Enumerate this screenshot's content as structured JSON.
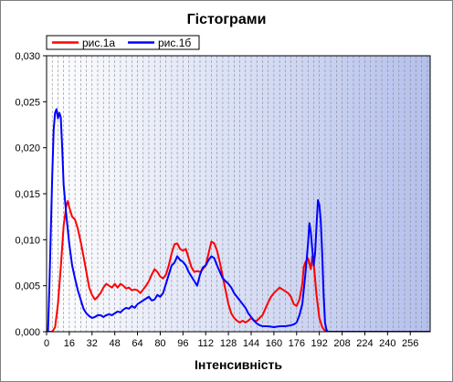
{
  "chart_data": {
    "type": "line",
    "title": "Гістограми",
    "xlabel": "Інтенсивність",
    "ylabel": "",
    "xlim": [
      0,
      270
    ],
    "ylim": [
      0,
      0.03
    ],
    "x_ticks": [
      "0",
      "16",
      "32",
      "48",
      "64",
      "80",
      "96",
      "112",
      "128",
      "144",
      "160",
      "176",
      "192",
      "208",
      "224",
      "240",
      "256"
    ],
    "y_ticks": [
      "0,000",
      "0,005",
      "0,010",
      "0,015",
      "0,020",
      "0,025",
      "0,030"
    ],
    "grid": "vertical dashed",
    "legend": "top-left",
    "colors": {
      "background_start": "#ffffff",
      "background_end": "#b4c0ec",
      "grid": "#8a8a8a"
    },
    "series": [
      {
        "name": "рис.1а",
        "color": "#ff0000",
        "points": [
          [
            0,
            0.0
          ],
          [
            4,
            0.0
          ],
          [
            6,
            0.0005
          ],
          [
            8,
            0.003
          ],
          [
            10,
            0.007
          ],
          [
            12,
            0.0115
          ],
          [
            14,
            0.0138
          ],
          [
            15,
            0.0142
          ],
          [
            16,
            0.0135
          ],
          [
            18,
            0.0125
          ],
          [
            20,
            0.0122
          ],
          [
            22,
            0.0112
          ],
          [
            24,
            0.0098
          ],
          [
            26,
            0.0082
          ],
          [
            28,
            0.0065
          ],
          [
            30,
            0.0048
          ],
          [
            32,
            0.004
          ],
          [
            34,
            0.0035
          ],
          [
            36,
            0.0038
          ],
          [
            38,
            0.0042
          ],
          [
            40,
            0.0048
          ],
          [
            42,
            0.0052
          ],
          [
            44,
            0.005
          ],
          [
            46,
            0.0048
          ],
          [
            48,
            0.0052
          ],
          [
            50,
            0.0048
          ],
          [
            52,
            0.0052
          ],
          [
            54,
            0.005
          ],
          [
            56,
            0.0047
          ],
          [
            58,
            0.0048
          ],
          [
            60,
            0.0045
          ],
          [
            62,
            0.0046
          ],
          [
            64,
            0.0045
          ],
          [
            66,
            0.0042
          ],
          [
            68,
            0.0046
          ],
          [
            70,
            0.005
          ],
          [
            72,
            0.0055
          ],
          [
            74,
            0.0062
          ],
          [
            76,
            0.0068
          ],
          [
            78,
            0.0065
          ],
          [
            80,
            0.006
          ],
          [
            82,
            0.0058
          ],
          [
            84,
            0.0062
          ],
          [
            86,
            0.0072
          ],
          [
            88,
            0.0085
          ],
          [
            90,
            0.0095
          ],
          [
            92,
            0.0096
          ],
          [
            94,
            0.009
          ],
          [
            96,
            0.0088
          ],
          [
            98,
            0.009
          ],
          [
            100,
            0.008
          ],
          [
            102,
            0.007
          ],
          [
            104,
            0.0065
          ],
          [
            106,
            0.0066
          ],
          [
            108,
            0.0065
          ],
          [
            110,
            0.0068
          ],
          [
            112,
            0.0072
          ],
          [
            114,
            0.0085
          ],
          [
            116,
            0.0098
          ],
          [
            118,
            0.0096
          ],
          [
            120,
            0.0088
          ],
          [
            122,
            0.0075
          ],
          [
            124,
            0.006
          ],
          [
            126,
            0.0045
          ],
          [
            128,
            0.003
          ],
          [
            130,
            0.002
          ],
          [
            132,
            0.0015
          ],
          [
            134,
            0.0012
          ],
          [
            136,
            0.001
          ],
          [
            138,
            0.0012
          ],
          [
            140,
            0.001
          ],
          [
            142,
            0.0012
          ],
          [
            144,
            0.0015
          ],
          [
            146,
            0.0012
          ],
          [
            148,
            0.0012
          ],
          [
            150,
            0.0015
          ],
          [
            152,
            0.0018
          ],
          [
            154,
            0.0025
          ],
          [
            156,
            0.0032
          ],
          [
            158,
            0.0038
          ],
          [
            160,
            0.0042
          ],
          [
            162,
            0.0045
          ],
          [
            164,
            0.0048
          ],
          [
            166,
            0.0046
          ],
          [
            168,
            0.0044
          ],
          [
            170,
            0.0042
          ],
          [
            172,
            0.0038
          ],
          [
            174,
            0.003
          ],
          [
            176,
            0.0028
          ],
          [
            178,
            0.0035
          ],
          [
            180,
            0.0052
          ],
          [
            181,
            0.007
          ],
          [
            182,
            0.0075
          ],
          [
            184,
            0.008
          ],
          [
            186,
            0.0068
          ],
          [
            187,
            0.0082
          ],
          [
            188,
            0.0075
          ],
          [
            190,
            0.004
          ],
          [
            192,
            0.0015
          ],
          [
            194,
            0.0005
          ],
          [
            196,
            0.0001
          ],
          [
            198,
            0.0
          ],
          [
            270,
            0.0
          ]
        ]
      },
      {
        "name": "рис.1б",
        "color": "#0000ff",
        "points": [
          [
            0,
            0.0
          ],
          [
            1,
            0.0
          ],
          [
            2,
            0.005
          ],
          [
            3,
            0.011
          ],
          [
            4,
            0.017
          ],
          [
            5,
            0.022
          ],
          [
            6,
            0.0238
          ],
          [
            7,
            0.0242
          ],
          [
            8,
            0.0232
          ],
          [
            9,
            0.0238
          ],
          [
            10,
            0.0233
          ],
          [
            11,
            0.02
          ],
          [
            12,
            0.016
          ],
          [
            14,
            0.0125
          ],
          [
            16,
            0.0095
          ],
          [
            18,
            0.0072
          ],
          [
            20,
            0.0058
          ],
          [
            22,
            0.0045
          ],
          [
            24,
            0.0035
          ],
          [
            26,
            0.0025
          ],
          [
            28,
            0.002
          ],
          [
            30,
            0.0017
          ],
          [
            32,
            0.0015
          ],
          [
            34,
            0.0016
          ],
          [
            36,
            0.0018
          ],
          [
            38,
            0.0018
          ],
          [
            40,
            0.0016
          ],
          [
            42,
            0.0018
          ],
          [
            44,
            0.0019
          ],
          [
            46,
            0.0018
          ],
          [
            48,
            0.002
          ],
          [
            50,
            0.0022
          ],
          [
            52,
            0.0021
          ],
          [
            54,
            0.0024
          ],
          [
            56,
            0.0026
          ],
          [
            58,
            0.0025
          ],
          [
            60,
            0.0028
          ],
          [
            62,
            0.0026
          ],
          [
            64,
            0.003
          ],
          [
            66,
            0.0032
          ],
          [
            68,
            0.0034
          ],
          [
            70,
            0.0036
          ],
          [
            72,
            0.0038
          ],
          [
            74,
            0.0034
          ],
          [
            76,
            0.0035
          ],
          [
            78,
            0.004
          ],
          [
            80,
            0.0038
          ],
          [
            82,
            0.0042
          ],
          [
            84,
            0.0052
          ],
          [
            86,
            0.0062
          ],
          [
            88,
            0.0072
          ],
          [
            90,
            0.0075
          ],
          [
            92,
            0.0082
          ],
          [
            94,
            0.0078
          ],
          [
            96,
            0.0076
          ],
          [
            98,
            0.0072
          ],
          [
            100,
            0.0065
          ],
          [
            102,
            0.006
          ],
          [
            104,
            0.0055
          ],
          [
            106,
            0.005
          ],
          [
            108,
            0.0062
          ],
          [
            110,
            0.007
          ],
          [
            112,
            0.0072
          ],
          [
            114,
            0.0078
          ],
          [
            116,
            0.0082
          ],
          [
            118,
            0.008
          ],
          [
            120,
            0.0072
          ],
          [
            122,
            0.0065
          ],
          [
            124,
            0.0058
          ],
          [
            126,
            0.0055
          ],
          [
            128,
            0.0052
          ],
          [
            130,
            0.0048
          ],
          [
            132,
            0.0042
          ],
          [
            134,
            0.0038
          ],
          [
            136,
            0.0034
          ],
          [
            138,
            0.003
          ],
          [
            140,
            0.0026
          ],
          [
            142,
            0.002
          ],
          [
            144,
            0.0016
          ],
          [
            146,
            0.0012
          ],
          [
            148,
            0.0009
          ],
          [
            150,
            0.0007
          ],
          [
            152,
            0.0006
          ],
          [
            156,
            0.0006
          ],
          [
            160,
            0.0005
          ],
          [
            164,
            0.0006
          ],
          [
            168,
            0.0006
          ],
          [
            172,
            0.0007
          ],
          [
            174,
            0.0008
          ],
          [
            176,
            0.001
          ],
          [
            178,
            0.0018
          ],
          [
            180,
            0.003
          ],
          [
            182,
            0.006
          ],
          [
            184,
            0.0095
          ],
          [
            185,
            0.0118
          ],
          [
            186,
            0.0108
          ],
          [
            187,
            0.009
          ],
          [
            188,
            0.0072
          ],
          [
            189,
            0.0085
          ],
          [
            190,
            0.0115
          ],
          [
            191,
            0.0143
          ],
          [
            192,
            0.0138
          ],
          [
            193,
            0.012
          ],
          [
            194,
            0.0085
          ],
          [
            195,
            0.004
          ],
          [
            196,
            0.001
          ],
          [
            197,
            0.0002
          ],
          [
            198,
            0.0
          ],
          [
            270,
            0.0
          ]
        ]
      }
    ]
  }
}
